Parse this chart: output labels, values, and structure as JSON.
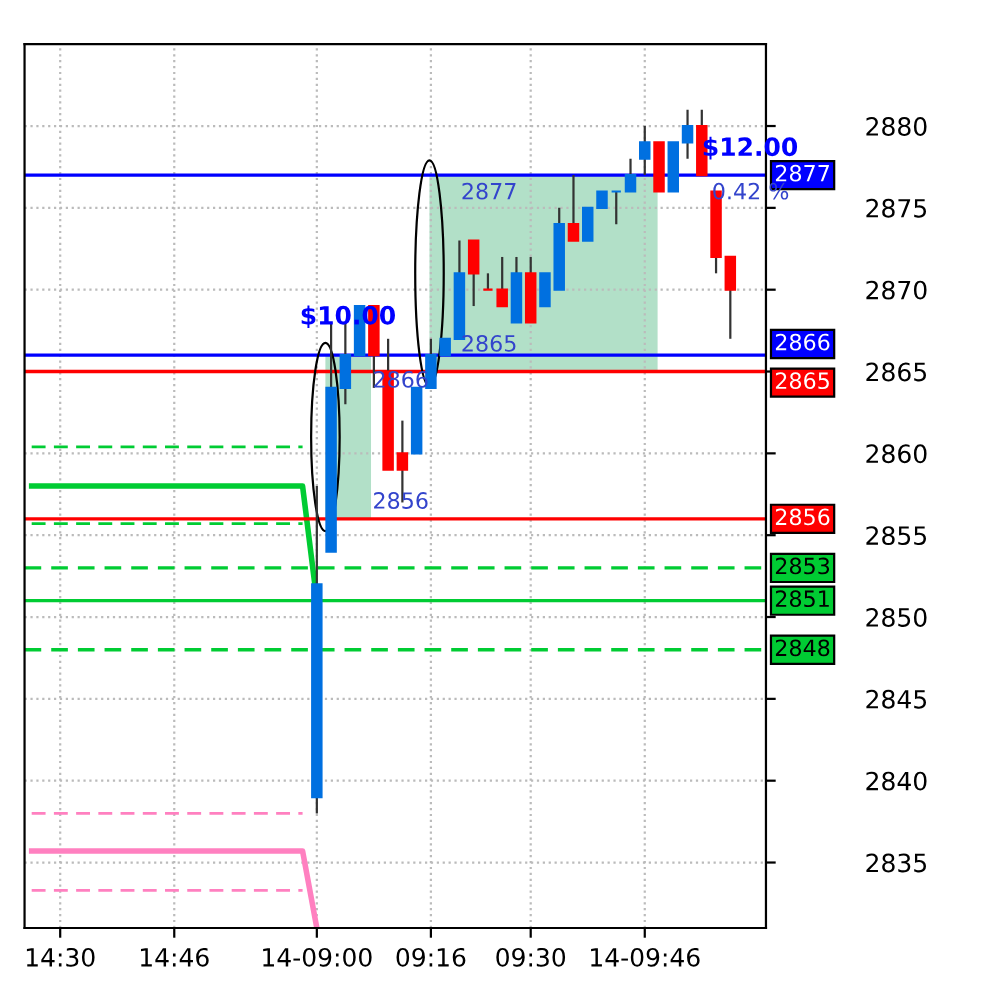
{
  "chart_data": {
    "type": "candlestick",
    "categories": [
      null,
      null,
      "14:30",
      null,
      null,
      null,
      null,
      null,
      null,
      null,
      "14:46",
      null,
      null,
      null,
      null,
      null,
      null,
      null,
      null,
      null,
      "14-09:00",
      null,
      null,
      null,
      null,
      null,
      null,
      null,
      "09:16",
      null,
      null,
      null,
      null,
      null,
      null,
      "09:30",
      null,
      null,
      null,
      null,
      null,
      null,
      null,
      "14-09:46",
      null,
      null,
      null,
      null,
      null,
      null,
      null,
      null
    ],
    "ohlc": [
      null,
      null,
      null,
      null,
      null,
      null,
      null,
      null,
      null,
      null,
      null,
      null,
      null,
      null,
      null,
      null,
      null,
      null,
      null,
      null,
      [
        2839,
        2858,
        2838,
        2852
      ],
      [
        2854,
        2868,
        2854,
        2864
      ],
      [
        2864,
        2868,
        2863,
        2866
      ],
      [
        2866,
        2869,
        2866,
        2869
      ],
      [
        2869,
        2869,
        2864,
        2866
      ],
      [
        2865,
        2867,
        2859,
        2859
      ],
      [
        2860,
        2862,
        2857,
        2859
      ],
      [
        2860,
        2864,
        2860,
        2864
      ],
      [
        2864,
        2867,
        2864,
        2866
      ],
      [
        2866,
        2867,
        2866,
        2867
      ],
      [
        2867,
        2873,
        2867,
        2871
      ],
      [
        2873,
        2873,
        2869,
        2871
      ],
      [
        2870,
        2871,
        2870,
        2870
      ],
      [
        2870,
        2872,
        2869,
        2869
      ],
      [
        2868,
        2872,
        2868,
        2871
      ],
      [
        2871,
        2872,
        2868,
        2868
      ],
      [
        2869,
        2871,
        2869,
        2871
      ],
      [
        2870,
        2875,
        2870,
        2874
      ],
      [
        2874,
        2877,
        2873,
        2873
      ],
      [
        2873,
        2875,
        2873,
        2875
      ],
      [
        2875,
        2876,
        2875,
        2876
      ],
      [
        2876,
        2876,
        2874,
        2876
      ],
      [
        2876,
        2878,
        2876,
        2877
      ],
      [
        2878,
        2880,
        2877,
        2879
      ],
      [
        2879,
        2879,
        2876,
        2876
      ],
      [
        2876,
        2879,
        2876,
        2879
      ],
      [
        2879,
        2881,
        2878,
        2880
      ],
      [
        2880,
        2881,
        2877,
        2877
      ],
      [
        2876,
        2876,
        2871,
        2872
      ],
      [
        2872,
        2872,
        2867,
        2870
      ],
      null,
      null
    ],
    "colors": [
      null,
      null,
      null,
      null,
      null,
      null,
      null,
      null,
      null,
      null,
      null,
      null,
      null,
      null,
      null,
      null,
      null,
      null,
      null,
      null,
      "#0070e0",
      "#0070e0",
      "#0070e0",
      "#0070e0",
      "#ff0000",
      "#ff0000",
      "#ff0000",
      "#0070e0",
      "#0070e0",
      "#0070e0",
      "#0070e0",
      "#ff0000",
      "#ff0000",
      "#ff0000",
      "#0070e0",
      "#ff0000",
      "#0070e0",
      "#0070e0",
      "#ff0000",
      "#0070e0",
      "#0070e0",
      "#0070e0",
      "#0070e0",
      "#0070e0",
      "#ff0000",
      "#0070e0",
      "#0070e0",
      "#ff0000",
      "#ff0000",
      "#ff0000",
      null,
      null
    ],
    "series": [
      {
        "type": "line",
        "values": [
          2858,
          2858,
          2858,
          2858,
          2858,
          2858,
          2858,
          2858,
          2858,
          2858,
          2858,
          2858,
          2858,
          2858,
          2858,
          2858,
          2858,
          2858,
          2858,
          2858,
          2851,
          null,
          null,
          null,
          null,
          null,
          null,
          null,
          null,
          null,
          null,
          null,
          null,
          null,
          null,
          null,
          null,
          null,
          null,
          null,
          null,
          null,
          null,
          null,
          null,
          null,
          null,
          null,
          null,
          null,
          null,
          null
        ],
        "color": "#00cc33",
        "line_style": "solid"
      },
      {
        "type": "line",
        "values": [
          2860.4,
          2860.4,
          2860.4,
          2860.4,
          2860.4,
          2860.4,
          2860.4,
          2860.4,
          2860.4,
          2860.4,
          2860.4,
          2860.4,
          2860.4,
          2860.4,
          2860.4,
          2860.4,
          2860.4,
          2860.4,
          2860.4,
          2860.4,
          null,
          null,
          null,
          null,
          null,
          null,
          null,
          null,
          null,
          null,
          null,
          null,
          null,
          null,
          null,
          null,
          null,
          null,
          null,
          null,
          null,
          null,
          null,
          null,
          null,
          null,
          null,
          null,
          null,
          null,
          null,
          null
        ],
        "color": "#00cc33",
        "line_style": "dashed"
      },
      {
        "type": "line",
        "values": [
          2855.7,
          2855.7,
          2855.7,
          2855.7,
          2855.7,
          2855.7,
          2855.7,
          2855.7,
          2855.7,
          2855.7,
          2855.7,
          2855.7,
          2855.7,
          2855.7,
          2855.7,
          2855.7,
          2855.7,
          2855.7,
          2855.7,
          2855.7,
          null,
          null,
          null,
          null,
          null,
          null,
          null,
          null,
          null,
          null,
          null,
          null,
          null,
          null,
          null,
          null,
          null,
          null,
          null,
          null,
          null,
          null,
          null,
          null,
          null,
          null,
          null,
          null,
          null,
          null,
          null,
          null
        ],
        "color": "#00cc33",
        "line_style": "dashed"
      },
      {
        "type": "line",
        "values": [
          2835.7,
          2835.7,
          2835.7,
          2835.7,
          2835.7,
          2835.7,
          2835.7,
          2835.7,
          2835.7,
          2835.7,
          2835.7,
          2835.7,
          2835.7,
          2835.7,
          2835.7,
          2835.7,
          2835.7,
          2835.7,
          2835.7,
          2835.7,
          2831,
          null,
          null,
          null,
          null,
          null,
          null,
          null,
          null,
          null,
          null,
          null,
          null,
          null,
          null,
          null,
          null,
          null,
          null,
          null,
          null,
          null,
          null,
          null,
          null,
          null,
          null,
          null,
          null,
          null,
          null,
          null
        ],
        "color": "#ff80c0",
        "line_style": "solid"
      },
      {
        "type": "line",
        "values": [
          2838,
          2838,
          2838,
          2838,
          2838,
          2838,
          2838,
          2838,
          2838,
          2838,
          2838,
          2838,
          2838,
          2838,
          2838,
          2838,
          2838,
          2838,
          2838,
          2838,
          null,
          null,
          null,
          null,
          null,
          null,
          null,
          null,
          null,
          null,
          null,
          null,
          null,
          null,
          null,
          null,
          null,
          null,
          null,
          null,
          null,
          null,
          null,
          null,
          null,
          null,
          null,
          null,
          null,
          null,
          null,
          null
        ],
        "color": "#ff80c0",
        "line_style": "dashed"
      },
      {
        "type": "line",
        "values": [
          2833.3,
          2833.3,
          2833.3,
          2833.3,
          2833.3,
          2833.3,
          2833.3,
          2833.3,
          2833.3,
          2833.3,
          2833.3,
          2833.3,
          2833.3,
          2833.3,
          2833.3,
          2833.3,
          2833.3,
          2833.3,
          2833.3,
          2833.3,
          null,
          null,
          null,
          null,
          null,
          null,
          null,
          null,
          null,
          null,
          null,
          null,
          null,
          null,
          null,
          null,
          null,
          null,
          null,
          null,
          null,
          null,
          null,
          null,
          null,
          null,
          null,
          null,
          null,
          null,
          null,
          null
        ],
        "color": "#ff80c0",
        "line_style": "dashed"
      }
    ],
    "ref_lines": [
      {
        "axis": "y",
        "value": 2877,
        "label": "2877",
        "color": "#0000ff",
        "line_style": "solid"
      },
      {
        "axis": "y",
        "value": 2866,
        "label": "2866",
        "color": "#0000ff",
        "line_style": "solid"
      },
      {
        "axis": "y",
        "value": 2865,
        "label": "2865",
        "color": "#ff0000",
        "line_style": "solid"
      },
      {
        "axis": "y",
        "value": 2856,
        "label": "2856",
        "color": "#ff0000",
        "line_style": "solid"
      },
      {
        "axis": "y",
        "value": 2853,
        "label": "2853",
        "color": "#00cc33",
        "line_style": "dashed"
      },
      {
        "axis": "y",
        "value": 2851,
        "label": "2851",
        "color": "#00cc33",
        "line_style": "solid"
      },
      {
        "axis": "y",
        "value": 2848,
        "label": "2848",
        "color": "#00cc33",
        "line_style": "dashed"
      }
    ],
    "annotations": [
      "$10.00",
      "$12.00",
      "0.42 %",
      "2866",
      "2856",
      "2877",
      "2865"
    ],
    "ylim": [
      2831,
      2885
    ],
    "yticks": [
      2835,
      2840,
      2845,
      2850,
      2855,
      2860,
      2865,
      2870,
      2875,
      2880
    ],
    "grid": true
  }
}
